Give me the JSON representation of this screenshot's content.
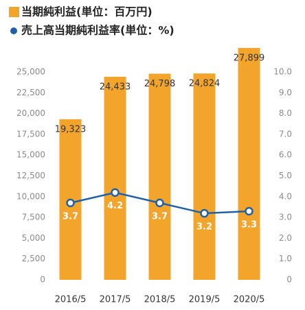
{
  "chart_data": {
    "type": "bar-line",
    "categories": [
      "2016/5",
      "2017/5",
      "2018/5",
      "2019/5",
      "2020/5"
    ],
    "series": [
      {
        "name": "当期純利益(単位：百万円)",
        "type": "bar",
        "color": "#f2a42b",
        "values": [
          19323,
          24433,
          24798,
          24824,
          27899
        ],
        "value_labels": [
          "19,323",
          "24,433",
          "24,798",
          "24,824",
          "27,899"
        ]
      },
      {
        "name": "売上高当期純利益率(単位：%)",
        "type": "line",
        "axis": "y2",
        "color": "#2060a8",
        "values": [
          3.7,
          4.2,
          3.7,
          3.2,
          3.3
        ]
      }
    ],
    "ylim": [
      0,
      25000
    ],
    "yticks": [
      0,
      {
        "value": 2500,
        "label": "2,500"
      },
      {
        "value": 5000,
        "label": "5,000"
      },
      {
        "value": 7500,
        "label": "7,500"
      },
      {
        "value": 10000,
        "label": "10,000"
      },
      {
        "value": 12500,
        "label": "12,500"
      },
      {
        "value": 15000,
        "label": "15,000"
      },
      {
        "value": 17500,
        "label": "17,500"
      },
      {
        "value": 20000,
        "label": "20,000"
      },
      {
        "value": 22500,
        "label": "22,500"
      },
      {
        "value": 25000,
        "label": "25,000"
      }
    ],
    "y2lim": [
      0,
      10
    ],
    "y2ticks": [
      0,
      {
        "value": 1,
        "label": "1.0"
      },
      {
        "value": 2,
        "label": "2.0"
      },
      {
        "value": 3,
        "label": "3.0"
      },
      {
        "value": 4,
        "label": "4.0"
      },
      {
        "value": 5,
        "label": "5.0"
      },
      {
        "value": 6,
        "label": "6.0"
      },
      {
        "value": 7,
        "label": "7.0"
      },
      {
        "value": 8,
        "label": "8.0"
      },
      {
        "value": 9,
        "label": "9.0"
      },
      {
        "value": 10,
        "label": "10.0"
      }
    ],
    "legend": "top-left"
  }
}
